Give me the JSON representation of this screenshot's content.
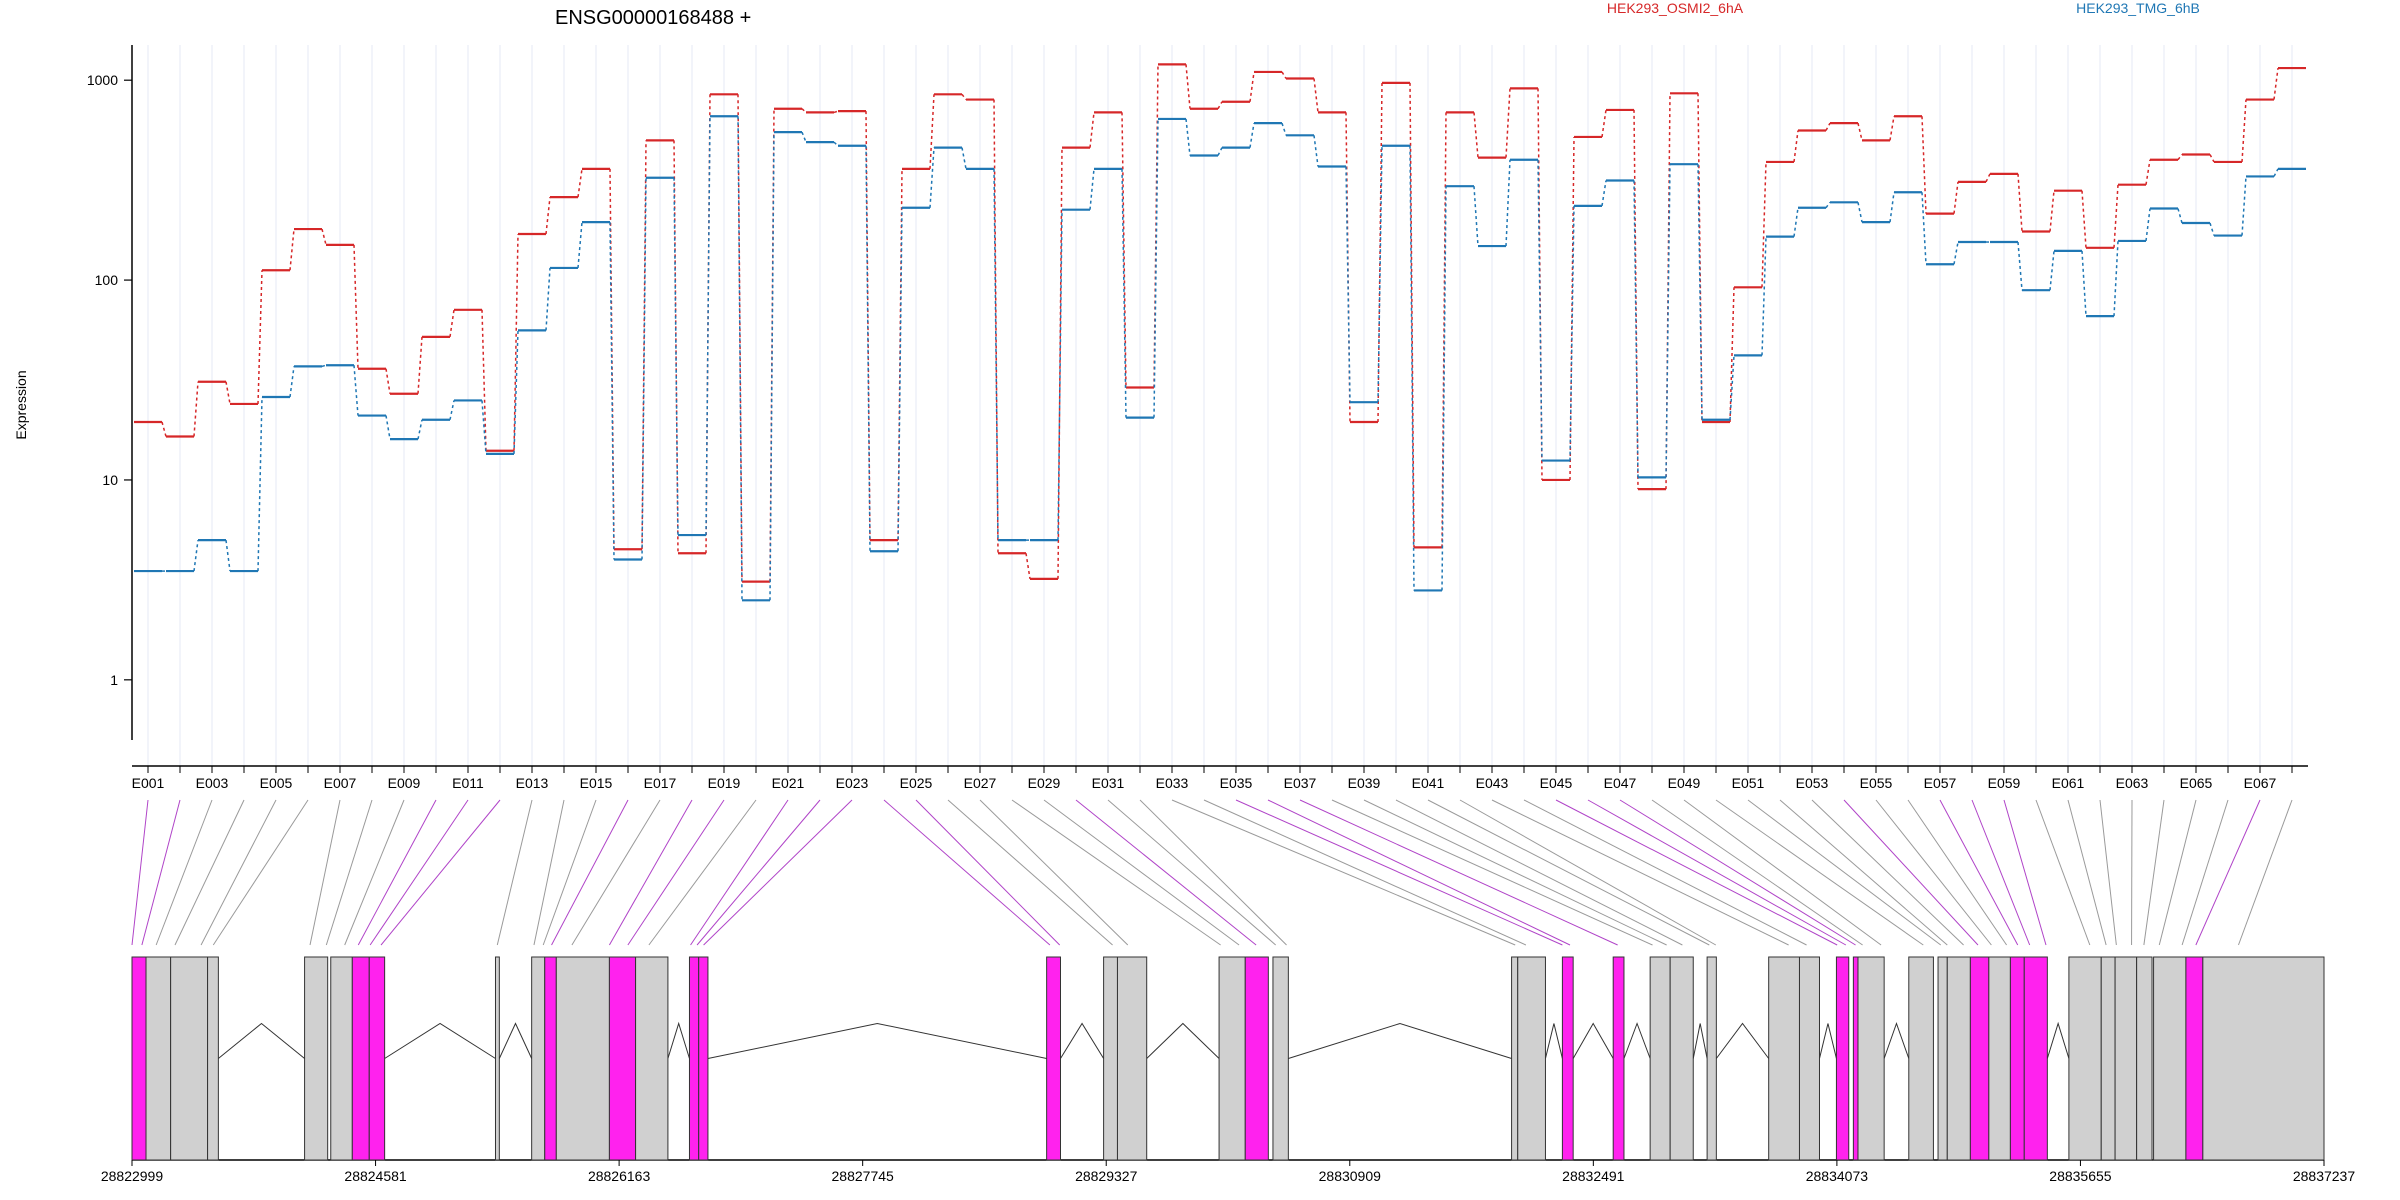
{
  "chart_data": {
    "type": "line",
    "title": "ENSG00000168488 +",
    "ylabel": "Expression",
    "y_scale": "log",
    "ylim": [
      0.5,
      1500
    ],
    "y_ticks": [
      1,
      10,
      100,
      1000
    ],
    "y_tick_labels": [
      "1",
      "10",
      "100",
      "1000"
    ],
    "grid": "vertical-per-exon",
    "legend_position": "top-right",
    "exon_labels": [
      "E001",
      "E003",
      "E005",
      "E007",
      "E009",
      "E011",
      "E013",
      "E015",
      "E017",
      "E019",
      "E021",
      "E023",
      "E025",
      "E027",
      "E029",
      "E031",
      "E033",
      "E035",
      "E037",
      "E039",
      "E041",
      "E043",
      "E045",
      "E047",
      "E049",
      "E051",
      "E053",
      "E055",
      "E057",
      "E059",
      "E061",
      "E063",
      "E065",
      "E067"
    ],
    "series": [
      {
        "name": "HEK293_OSMI2_6hA",
        "color": "#d62728",
        "values": [
          19.5,
          16.5,
          31,
          24,
          112,
          180,
          150,
          36,
          27,
          52,
          71,
          14,
          170,
          260,
          360,
          4.5,
          500,
          4.3,
          850,
          3.1,
          720,
          690,
          700,
          5,
          360,
          850,
          800,
          4.3,
          3.2,
          460,
          690,
          29,
          1200,
          720,
          780,
          1100,
          1020,
          690,
          19.5,
          970,
          4.6,
          690,
          410,
          910,
          10,
          520,
          710,
          9,
          860,
          19.5,
          92,
          390,
          560,
          610,
          500,
          660,
          215,
          310,
          340,
          175,
          280,
          145,
          300,
          400,
          425,
          390,
          800,
          1150
        ]
      },
      {
        "name": "HEK293_TMG_6hB",
        "color": "#1f77b4",
        "values": [
          3.5,
          3.5,
          5,
          3.5,
          26,
          37,
          37.5,
          21,
          16,
          20,
          25,
          13.5,
          56,
          115,
          195,
          4,
          325,
          5.3,
          660,
          2.5,
          550,
          490,
          470,
          4.4,
          230,
          460,
          360,
          5,
          5,
          225,
          360,
          20.5,
          640,
          420,
          460,
          610,
          530,
          370,
          24.5,
          470,
          2.8,
          295,
          148,
          400,
          12.5,
          235,
          315,
          10.3,
          380,
          20,
          42,
          165,
          230,
          245,
          195,
          275,
          120,
          155,
          155,
          89,
          140,
          66,
          157,
          228,
          193,
          167,
          330,
          360
        ]
      }
    ],
    "exon_highlight": [
      "#ff22ee",
      "#d0d0d0"
    ],
    "x_axis_ticks": [
      "28822999",
      "28824581",
      "28826163",
      "28827745",
      "28829327",
      "28830909",
      "28832491",
      "28834073",
      "28835655",
      "28837237"
    ],
    "gene_start": 28822999,
    "gene_end": 28837237,
    "exon_blocks": [
      {
        "s": 28822999,
        "e": 28823090,
        "hl": true
      },
      {
        "s": 28823090,
        "e": 28823250,
        "hl": false
      },
      {
        "s": 28823250,
        "e": 28823490,
        "hl": false
      },
      {
        "s": 28823490,
        "e": 28823560,
        "hl": false
      },
      {
        "s": 28824120,
        "e": 28824270,
        "hl": false
      },
      {
        "s": 28824290,
        "e": 28824430,
        "hl": false
      },
      {
        "s": 28824430,
        "e": 28824540,
        "hl": true
      },
      {
        "s": 28824540,
        "e": 28824640,
        "hl": true
      },
      {
        "s": 28825360,
        "e": 28825385,
        "hl": false
      },
      {
        "s": 28825595,
        "e": 28825680,
        "hl": false
      },
      {
        "s": 28825680,
        "e": 28825755,
        "hl": true
      },
      {
        "s": 28825755,
        "e": 28826100,
        "hl": false
      },
      {
        "s": 28826100,
        "e": 28826270,
        "hl": true
      },
      {
        "s": 28826270,
        "e": 28826480,
        "hl": false
      },
      {
        "s": 28826620,
        "e": 28826680,
        "hl": true
      },
      {
        "s": 28826680,
        "e": 28826740,
        "hl": true
      },
      {
        "s": 28828940,
        "e": 28829030,
        "hl": true
      },
      {
        "s": 28829310,
        "e": 28829400,
        "hl": false
      },
      {
        "s": 28829400,
        "e": 28829590,
        "hl": false
      },
      {
        "s": 28830060,
        "e": 28830230,
        "hl": false
      },
      {
        "s": 28830230,
        "e": 28830380,
        "hl": true
      },
      {
        "s": 28830410,
        "e": 28830510,
        "hl": false
      },
      {
        "s": 28831960,
        "e": 28832000,
        "hl": false
      },
      {
        "s": 28832000,
        "e": 28832180,
        "hl": false
      },
      {
        "s": 28832290,
        "e": 28832360,
        "hl": true
      },
      {
        "s": 28832620,
        "e": 28832690,
        "hl": true
      },
      {
        "s": 28832860,
        "e": 28832990,
        "hl": false
      },
      {
        "s": 28832990,
        "e": 28833140,
        "hl": false
      },
      {
        "s": 28833230,
        "e": 28833290,
        "hl": false
      },
      {
        "s": 28833630,
        "e": 28833830,
        "hl": false
      },
      {
        "s": 28833830,
        "e": 28833960,
        "hl": false
      },
      {
        "s": 28834070,
        "e": 28834150,
        "hl": true
      },
      {
        "s": 28834180,
        "e": 28834210,
        "hl": true
      },
      {
        "s": 28834210,
        "e": 28834380,
        "hl": false
      },
      {
        "s": 28834540,
        "e": 28834700,
        "hl": false
      },
      {
        "s": 28834730,
        "e": 28834790,
        "hl": false
      },
      {
        "s": 28834790,
        "e": 28834940,
        "hl": false
      },
      {
        "s": 28834940,
        "e": 28835060,
        "hl": true
      },
      {
        "s": 28835060,
        "e": 28835200,
        "hl": false
      },
      {
        "s": 28835200,
        "e": 28835290,
        "hl": true
      },
      {
        "s": 28835290,
        "e": 28835440,
        "hl": true
      },
      {
        "s": 28835580,
        "e": 28835790,
        "hl": false
      },
      {
        "s": 28835790,
        "e": 28835880,
        "hl": false
      },
      {
        "s": 28835880,
        "e": 28836020,
        "hl": false
      },
      {
        "s": 28836020,
        "e": 28836120,
        "hl": false
      },
      {
        "s": 28836130,
        "e": 28836340,
        "hl": false
      },
      {
        "s": 28836340,
        "e": 28836450,
        "hl": true
      },
      {
        "s": 28836450,
        "e": 28837237,
        "hl": false
      }
    ],
    "introns": [
      [
        28823560,
        28824120
      ],
      [
        28824640,
        28825360
      ],
      [
        28825385,
        28825595
      ],
      [
        28826480,
        28826620
      ],
      [
        28826740,
        28828940
      ],
      [
        28829030,
        28829310
      ],
      [
        28829590,
        28830060
      ],
      [
        28830510,
        28831960
      ],
      [
        28832180,
        28832290
      ],
      [
        28832360,
        28832620
      ],
      [
        28832690,
        28832860
      ],
      [
        28833140,
        28833230
      ],
      [
        28833290,
        28833630
      ],
      [
        28833960,
        28834070
      ],
      [
        28834380,
        28834540
      ],
      [
        28835440,
        28835580
      ]
    ]
  }
}
